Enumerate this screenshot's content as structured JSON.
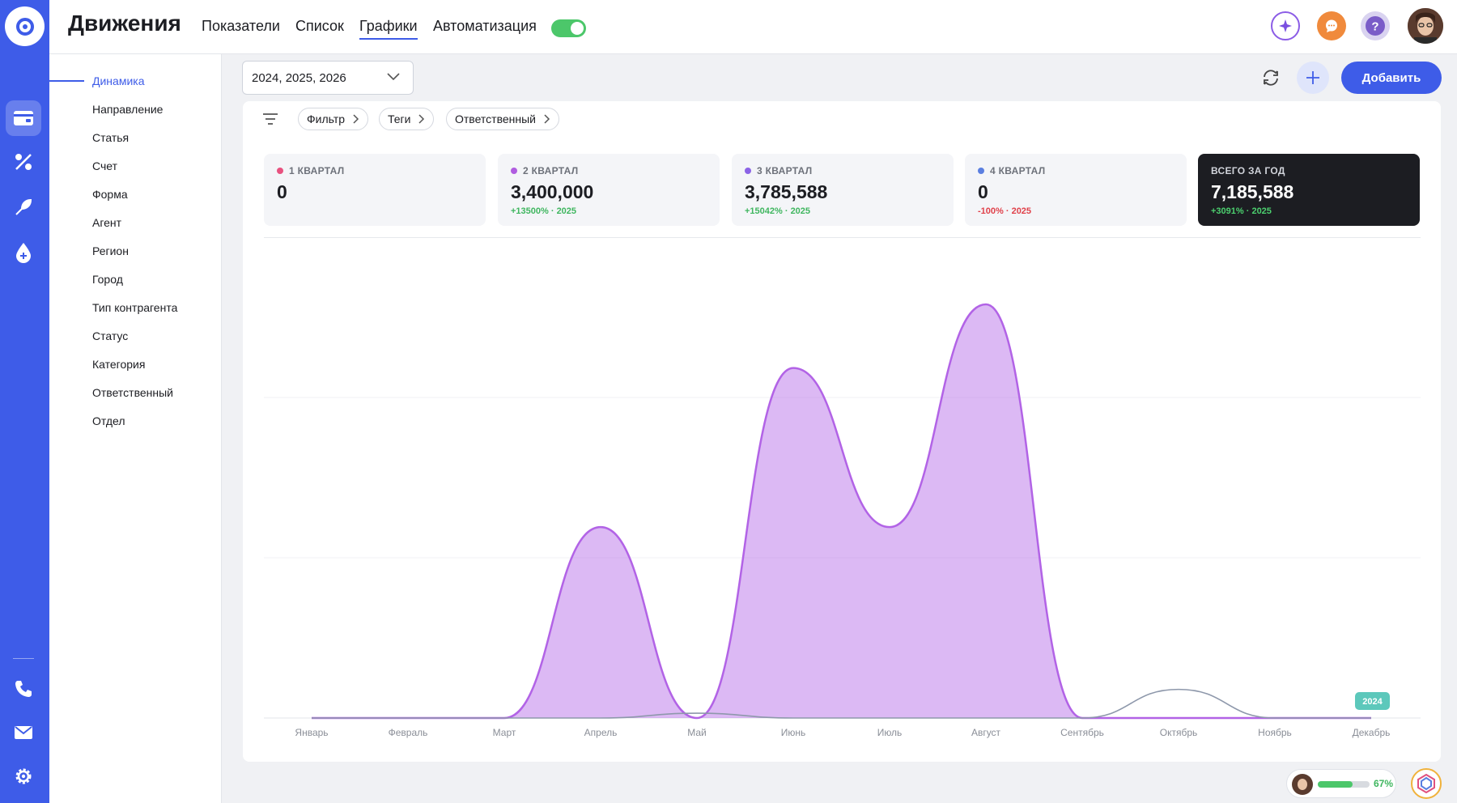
{
  "header": {
    "title": "Движения",
    "tabs": [
      {
        "label": "Показатели",
        "active": false
      },
      {
        "label": "Список",
        "active": false
      },
      {
        "label": "Графики",
        "active": true
      },
      {
        "label": "Автоматизация",
        "active": false
      }
    ],
    "automation_toggle_on": true
  },
  "subnav": {
    "items": [
      "Динамика",
      "Направление",
      "Статья",
      "Счет",
      "Форма",
      "Агент",
      "Регион",
      "Город",
      "Тип контрагента",
      "Статус",
      "Категория",
      "Ответственный",
      "Отдел"
    ],
    "active_index": 0
  },
  "controls": {
    "years": "2024, 2025, 2026",
    "add_label": "Добавить"
  },
  "filters": [
    "Фильтр",
    "Теги",
    "Ответственный"
  ],
  "stats": [
    {
      "label": "1 КВАРТАЛ",
      "value": "0",
      "change": "",
      "color": "#e8517f"
    },
    {
      "label": "2 КВАРТАЛ",
      "value": "3,400,000",
      "change": "+13500% · 2025",
      "change_color": "#3fb65f",
      "color": "#b05de0"
    },
    {
      "label": "3 КВАРТАЛ",
      "value": "3,785,588",
      "change": "+15042% · 2025",
      "change_color": "#3fb65f",
      "color": "#8b63e6"
    },
    {
      "label": "4 КВАРТАЛ",
      "value": "0",
      "change": "-100% · 2025",
      "change_color": "#e0414a",
      "color": "#5b7fe0"
    },
    {
      "label": "ВСЕГО ЗА ГОД",
      "value": "7,185,588",
      "change": "+3091% · 2025",
      "change_color": "#4cd06f",
      "dark": true
    }
  ],
  "chart_data": {
    "type": "area",
    "categories": [
      "Январь",
      "Февраль",
      "Март",
      "Апрель",
      "Май",
      "Июнь",
      "Июль",
      "Август",
      "Сентябрь",
      "Октябрь",
      "Ноябрь",
      "Декабрь"
    ],
    "series": [
      {
        "name": "",
        "color": "#b263e6",
        "values": [
          0,
          0,
          0,
          1200000,
          0,
          2200000,
          1200000,
          2600000,
          0,
          0,
          0,
          0
        ]
      },
      {
        "name": "",
        "color": "#8e98ab",
        "values": [
          0,
          0,
          0,
          0,
          30000,
          0,
          0,
          0,
          0,
          180000,
          0,
          0
        ]
      }
    ],
    "ylim": [
      0,
      2600000
    ],
    "year_badge": "2024",
    "badge_color": "#5cc8bb"
  },
  "footer": {
    "progress": 67,
    "progress_label": "67%"
  }
}
